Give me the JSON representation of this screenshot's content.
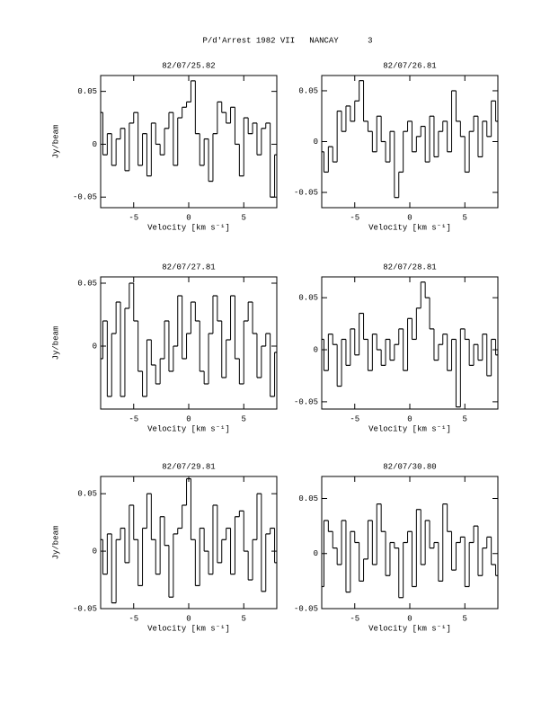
{
  "title": "P/d'Arrest 1982 VII   NANCAY      3",
  "chart_data": [
    {
      "type": "line",
      "drawstyle": "steps-mid",
      "title": "82/07/25.82",
      "xlabel": "Velocity [km s⁻¹]",
      "ylabel": "Jy/beam",
      "x": [
        -8,
        -7.6,
        -7.2,
        -6.8,
        -6.4,
        -6,
        -5.6,
        -5.2,
        -4.8,
        -4.4,
        -4,
        -3.6,
        -3.2,
        -2.8,
        -2.4,
        -2,
        -1.6,
        -1.2,
        -0.8,
        -0.4,
        0,
        0.4,
        0.8,
        1.2,
        1.6,
        2,
        2.4,
        2.8,
        3.2,
        3.6,
        4,
        4.4,
        4.8,
        5.2,
        5.6,
        6,
        6.4,
        6.8,
        7.2,
        7.6,
        8
      ],
      "series": [
        {
          "color": "#000000",
          "values": [
            0.03,
            -0.01,
            0.01,
            -0.02,
            0.005,
            0.015,
            -0.025,
            0.02,
            0.03,
            -0.02,
            0.01,
            -0.03,
            0.02,
            0,
            -0.01,
            0.015,
            0.03,
            -0.02,
            0.025,
            0.035,
            0.04,
            0.06,
            0.01,
            -0.02,
            0.005,
            -0.035,
            0.01,
            0.04,
            0.03,
            0.02,
            0.035,
            0,
            -0.03,
            0.025,
            0.01,
            0.02,
            -0.01,
            0.015,
            0.02,
            -0.05,
            -0.01
          ]
        }
      ],
      "xlim": [
        -8,
        8
      ],
      "ylim": [
        -0.06,
        0.065
      ],
      "xticks": [
        -5,
        0,
        5
      ],
      "yticks": [
        -0.05,
        0,
        0.05
      ]
    },
    {
      "type": "line",
      "drawstyle": "steps-mid",
      "title": "82/07/26.81",
      "xlabel": "Velocity [km s⁻¹]",
      "x": [
        -8,
        -7.6,
        -7.2,
        -6.8,
        -6.4,
        -6,
        -5.6,
        -5.2,
        -4.8,
        -4.4,
        -4,
        -3.6,
        -3.2,
        -2.8,
        -2.4,
        -2,
        -1.6,
        -1.2,
        -0.8,
        -0.4,
        0,
        0.4,
        0.8,
        1.2,
        1.6,
        2,
        2.4,
        2.8,
        3.2,
        3.6,
        4,
        4.4,
        4.8,
        5.2,
        5.6,
        6,
        6.4,
        6.8,
        7.2,
        7.6,
        8
      ],
      "series": [
        {
          "color": "#000000",
          "values": [
            -0.01,
            -0.03,
            -0.005,
            -0.02,
            0.03,
            0.01,
            0.035,
            0.02,
            0.04,
            0.06,
            0.02,
            0.01,
            -0.01,
            0.025,
            0,
            -0.02,
            0.01,
            -0.055,
            -0.03,
            0.01,
            0.02,
            -0.01,
            0.005,
            0.015,
            -0.02,
            0.025,
            -0.015,
            0.01,
            0.02,
            -0.01,
            0.05,
            0.02,
            0.005,
            -0.03,
            0.01,
            0.025,
            -0.015,
            0.02,
            0.005,
            0.04,
            0.02
          ]
        }
      ],
      "xlim": [
        -8,
        8
      ],
      "ylim": [
        -0.065,
        0.065
      ],
      "xticks": [
        -5,
        0,
        5
      ],
      "yticks": [
        -0.05,
        0,
        0.05
      ]
    },
    {
      "type": "line",
      "drawstyle": "steps-mid",
      "title": "82/07/27.81",
      "xlabel": "Velocity [km s⁻¹]",
      "ylabel": "Jy/beam",
      "x": [
        -8,
        -7.6,
        -7.2,
        -6.8,
        -6.4,
        -6,
        -5.6,
        -5.2,
        -4.8,
        -4.4,
        -4,
        -3.6,
        -3.2,
        -2.8,
        -2.4,
        -2,
        -1.6,
        -1.2,
        -0.8,
        -0.4,
        0,
        0.4,
        0.8,
        1.2,
        1.6,
        2,
        2.4,
        2.8,
        3.2,
        3.6,
        4,
        4.4,
        4.8,
        5.2,
        5.6,
        6,
        6.4,
        6.8,
        7.2,
        7.6,
        8
      ],
      "series": [
        {
          "color": "#000000",
          "values": [
            -0.01,
            0.02,
            -0.04,
            0.01,
            0.035,
            -0.04,
            0.03,
            0.05,
            0.02,
            -0.02,
            -0.04,
            0.005,
            -0.015,
            -0.03,
            -0.01,
            0.02,
            -0.02,
            0,
            0.04,
            -0.01,
            0.01,
            0.035,
            0.02,
            -0.02,
            -0.03,
            0.01,
            0.04,
            0.02,
            -0.025,
            0.005,
            0.04,
            -0.01,
            -0.03,
            0.02,
            0.035,
            0.01,
            -0.025,
            0,
            0.01,
            -0.04,
            -0.005
          ]
        }
      ],
      "xlim": [
        -8,
        8
      ],
      "ylim": [
        -0.05,
        0.055
      ],
      "xticks": [
        -5,
        0,
        5
      ],
      "yticks": [
        0,
        0.05
      ]
    },
    {
      "type": "line",
      "drawstyle": "steps-mid",
      "title": "82/07/28.81",
      "xlabel": "Velocity [km s⁻¹]",
      "x": [
        -8,
        -7.6,
        -7.2,
        -6.8,
        -6.4,
        -6,
        -5.6,
        -5.2,
        -4.8,
        -4.4,
        -4,
        -3.6,
        -3.2,
        -2.8,
        -2.4,
        -2,
        -1.6,
        -1.2,
        -0.8,
        -0.4,
        0,
        0.4,
        0.8,
        1.2,
        1.6,
        2,
        2.4,
        2.8,
        3.2,
        3.6,
        4,
        4.4,
        4.8,
        5.2,
        5.6,
        6,
        6.4,
        6.8,
        7.2,
        7.6,
        8
      ],
      "series": [
        {
          "color": "#000000",
          "values": [
            0.01,
            -0.02,
            0.015,
            0.005,
            -0.035,
            0.01,
            -0.015,
            0.02,
            -0.005,
            0.035,
            0.01,
            -0.02,
            0.015,
            0,
            -0.015,
            0.01,
            -0.01,
            0.005,
            0.02,
            -0.02,
            0.03,
            0.01,
            0.04,
            0.065,
            0.05,
            0.02,
            -0.01,
            0.005,
            0.015,
            -0.02,
            0.01,
            -0.055,
            0.02,
            0.01,
            -0.015,
            0.005,
            -0.01,
            0.015,
            -0.025,
            0.01,
            -0.005
          ]
        }
      ],
      "xlim": [
        -8,
        8
      ],
      "ylim": [
        -0.057,
        0.07
      ],
      "xticks": [
        -5,
        0,
        5
      ],
      "yticks": [
        -0.05,
        0,
        0.05
      ]
    },
    {
      "type": "line",
      "drawstyle": "steps-mid",
      "title": "82/07/29.81",
      "xlabel": "Velocity [km s⁻¹]",
      "ylabel": "Jy/beam",
      "x": [
        -8,
        -7.6,
        -7.2,
        -6.8,
        -6.4,
        -6,
        -5.6,
        -5.2,
        -4.8,
        -4.4,
        -4,
        -3.6,
        -3.2,
        -2.8,
        -2.4,
        -2,
        -1.6,
        -1.2,
        -0.8,
        -0.4,
        0,
        0.4,
        0.8,
        1.2,
        1.6,
        2,
        2.4,
        2.8,
        3.2,
        3.6,
        4,
        4.4,
        4.8,
        5.2,
        5.6,
        6,
        6.4,
        6.8,
        7.2,
        7.6,
        8
      ],
      "series": [
        {
          "color": "#000000",
          "values": [
            0.01,
            -0.02,
            0.015,
            -0.045,
            0.01,
            0.02,
            -0.01,
            0.04,
            0.01,
            -0.03,
            0.02,
            0.05,
            0.01,
            -0.02,
            0.03,
            0.005,
            -0.04,
            0.015,
            0.02,
            0.04,
            0.063,
            0.01,
            -0.03,
            0.02,
            0,
            -0.02,
            0.04,
            -0.01,
            0.01,
            0.02,
            -0.02,
            0.03,
            0.035,
            0,
            -0.025,
            0.01,
            0.05,
            -0.035,
            0.015,
            0.02,
            -0.01
          ]
        }
      ],
      "xlim": [
        -8,
        8
      ],
      "ylim": [
        -0.05,
        0.065
      ],
      "xticks": [
        -5,
        0,
        5
      ],
      "yticks": [
        -0.05,
        0,
        0.05
      ]
    },
    {
      "type": "line",
      "drawstyle": "steps-mid",
      "title": "82/07/30.80",
      "xlabel": "Velocity [km s⁻¹]",
      "x": [
        -8,
        -7.6,
        -7.2,
        -6.8,
        -6.4,
        -6,
        -5.6,
        -5.2,
        -4.8,
        -4.4,
        -4,
        -3.6,
        -3.2,
        -2.8,
        -2.4,
        -2,
        -1.6,
        -1.2,
        -0.8,
        -0.4,
        0,
        0.4,
        0.8,
        1.2,
        1.6,
        2,
        2.4,
        2.8,
        3.2,
        3.6,
        4,
        4.4,
        4.8,
        5.2,
        5.6,
        6,
        6.4,
        6.8,
        7.2,
        7.6,
        8
      ],
      "series": [
        {
          "color": "#000000",
          "values": [
            -0.03,
            0.03,
            0.02,
            0.005,
            -0.01,
            0.03,
            -0.035,
            0.02,
            0.01,
            -0.025,
            -0.005,
            0.03,
            -0.01,
            0.045,
            0.02,
            -0.02,
            0.01,
            0.005,
            -0.04,
            0.01,
            0.02,
            -0.03,
            0.04,
            -0.01,
            0.03,
            0.005,
            0.01,
            -0.025,
            0.045,
            0.02,
            -0.015,
            0.01,
            0.015,
            -0.03,
            0.01,
            0.025,
            -0.02,
            0.005,
            0.015,
            -0.01,
            -0.02
          ]
        }
      ],
      "xlim": [
        -8,
        8
      ],
      "ylim": [
        -0.05,
        0.07
      ],
      "xticks": [
        -5,
        0,
        5
      ],
      "yticks": [
        -0.05,
        0,
        0.05
      ]
    }
  ]
}
